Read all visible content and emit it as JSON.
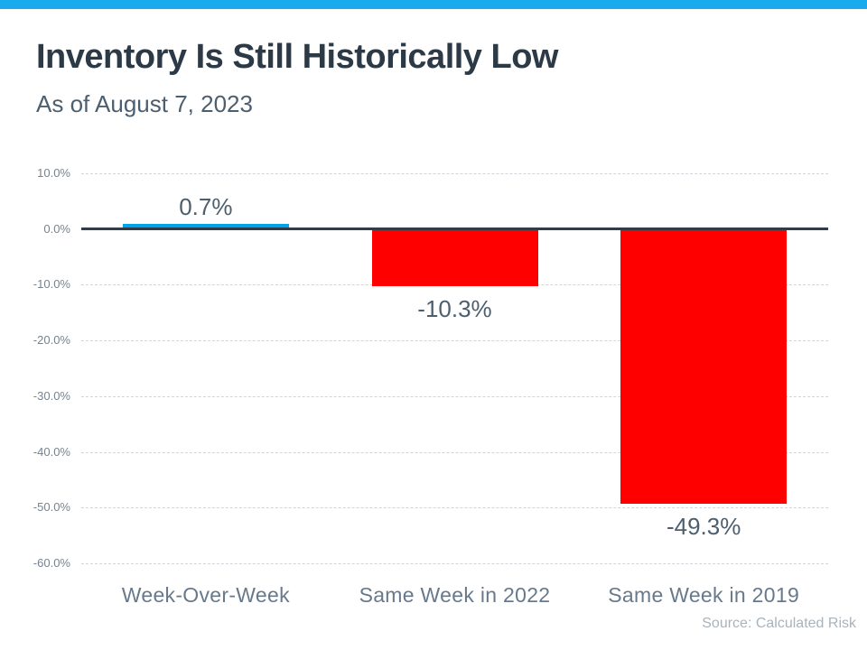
{
  "page": {
    "topbar_color": "#19ABEB",
    "background_color": "#FFFFFF"
  },
  "header": {
    "title": "Inventory Is Still Historically Low",
    "subtitle": "As of August 7, 2023"
  },
  "chart_data": {
    "type": "bar",
    "title": "Inventory Is Still Historically Low",
    "subtitle": "As of August 7, 2023",
    "categories": [
      "Week-Over-Week",
      "Same Week in 2022",
      "Same Week in 2019"
    ],
    "values": [
      0.7,
      -10.3,
      -49.3
    ],
    "value_labels": [
      "0.7%",
      "-10.3%",
      "-49.3%"
    ],
    "bar_colors": [
      "#00A2E8",
      "#FF0000",
      "#FF0000"
    ],
    "xlabel": "",
    "ylabel": "",
    "ylim": [
      -60,
      10
    ],
    "yticks": [
      10,
      0,
      -10,
      -20,
      -30,
      -40,
      -50,
      -60
    ],
    "ytick_labels": [
      "10.0%",
      "0.0%",
      "-10.0%",
      "-20.0%",
      "-30.0%",
      "-40.0%",
      "-50.0%",
      "-60.0%"
    ],
    "grid": "horizontal-dashed",
    "grid_color": "#D0D5DA",
    "zero_line_color": "#333C46",
    "legend": "none"
  },
  "footer": {
    "source": "Source: Calculated Risk"
  }
}
